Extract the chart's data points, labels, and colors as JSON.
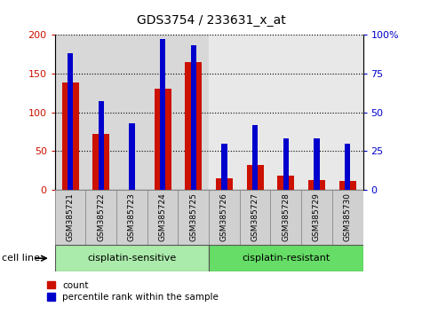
{
  "title": "GDS3754 / 233631_x_at",
  "samples": [
    "GSM385721",
    "GSM385722",
    "GSM385723",
    "GSM385724",
    "GSM385725",
    "GSM385726",
    "GSM385727",
    "GSM385728",
    "GSM385729",
    "GSM385730"
  ],
  "counts": [
    138,
    72,
    0,
    130,
    165,
    15,
    32,
    18,
    13,
    12
  ],
  "percentile_ranks": [
    88,
    57,
    43,
    97,
    93,
    30,
    42,
    33,
    33,
    30
  ],
  "group1_label": "cisplatin-sensitive",
  "group2_label": "cisplatin-resistant",
  "group1_color": "#aaeaaa",
  "group2_color": "#66dd66",
  "cell_line_label": "cell line",
  "bar_color": "#cc1100",
  "rank_color": "#0000cc",
  "ylim_left": [
    0,
    200
  ],
  "ylim_right": [
    0,
    100
  ],
  "yticks_left": [
    0,
    50,
    100,
    150,
    200
  ],
  "yticks_right": [
    0,
    25,
    50,
    75,
    100
  ],
  "yticklabels_right": [
    "0",
    "25",
    "50",
    "75",
    "100%"
  ],
  "yticklabels_left": [
    "0",
    "50",
    "100",
    "150",
    "200"
  ],
  "legend_count_label": "count",
  "legend_rank_label": "percentile rank within the sample",
  "bg_left": "#d8d8d8",
  "bg_right": "#e8e8e8",
  "bg_plot": "#ffffff"
}
